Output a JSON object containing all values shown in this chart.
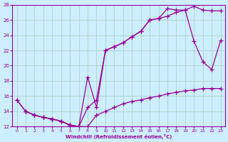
{
  "xlabel": "Windchill (Refroidissement éolien,°C)",
  "bg_color": "#cceeff",
  "grid_color": "#aaccbb",
  "line_color": "#990099",
  "line1_x": [
    0,
    1,
    2,
    3,
    4,
    5,
    6,
    7,
    8,
    9,
    10,
    11,
    12,
    13,
    14,
    15,
    16,
    17,
    18,
    19,
    20,
    21,
    22,
    23
  ],
  "line1_y": [
    15.5,
    14.0,
    13.5,
    13.2,
    13.0,
    12.7,
    12.2,
    12.0,
    12.0,
    13.5,
    14.0,
    14.5,
    15.0,
    15.3,
    15.5,
    15.8,
    16.0,
    16.3,
    16.5,
    16.7,
    16.8,
    17.0,
    17.0,
    17.0
  ],
  "line2_x": [
    0,
    1,
    2,
    3,
    4,
    5,
    6,
    7,
    8,
    9,
    10,
    11,
    12,
    13,
    14,
    15,
    16,
    17,
    18,
    19,
    20,
    21,
    22,
    23
  ],
  "line2_y": [
    15.5,
    14.0,
    13.5,
    13.2,
    13.0,
    12.7,
    12.2,
    12.0,
    18.5,
    14.5,
    22.0,
    22.5,
    23.0,
    23.8,
    24.5,
    26.0,
    26.2,
    26.5,
    27.0,
    27.3,
    23.2,
    20.5,
    19.5,
    23.3
  ],
  "line3_x": [
    1,
    2,
    3,
    4,
    5,
    6,
    7,
    8,
    9,
    10,
    11,
    12,
    13,
    14,
    15,
    16,
    17,
    18,
    19,
    20,
    21,
    22,
    23
  ],
  "line3_y": [
    14.0,
    13.5,
    13.2,
    13.0,
    12.7,
    12.2,
    12.0,
    14.5,
    15.5,
    22.0,
    22.5,
    23.0,
    23.8,
    24.5,
    26.0,
    26.2,
    27.5,
    27.3,
    27.3,
    27.8,
    27.3,
    27.2,
    27.2
  ],
  "ylim": [
    12,
    28
  ],
  "xlim": [
    -0.5,
    23.5
  ],
  "yticks": [
    12,
    14,
    16,
    18,
    20,
    22,
    24,
    26,
    28
  ],
  "xticks": [
    0,
    1,
    2,
    3,
    4,
    5,
    6,
    7,
    8,
    9,
    10,
    11,
    12,
    13,
    14,
    15,
    16,
    17,
    18,
    19,
    20,
    21,
    22,
    23
  ]
}
